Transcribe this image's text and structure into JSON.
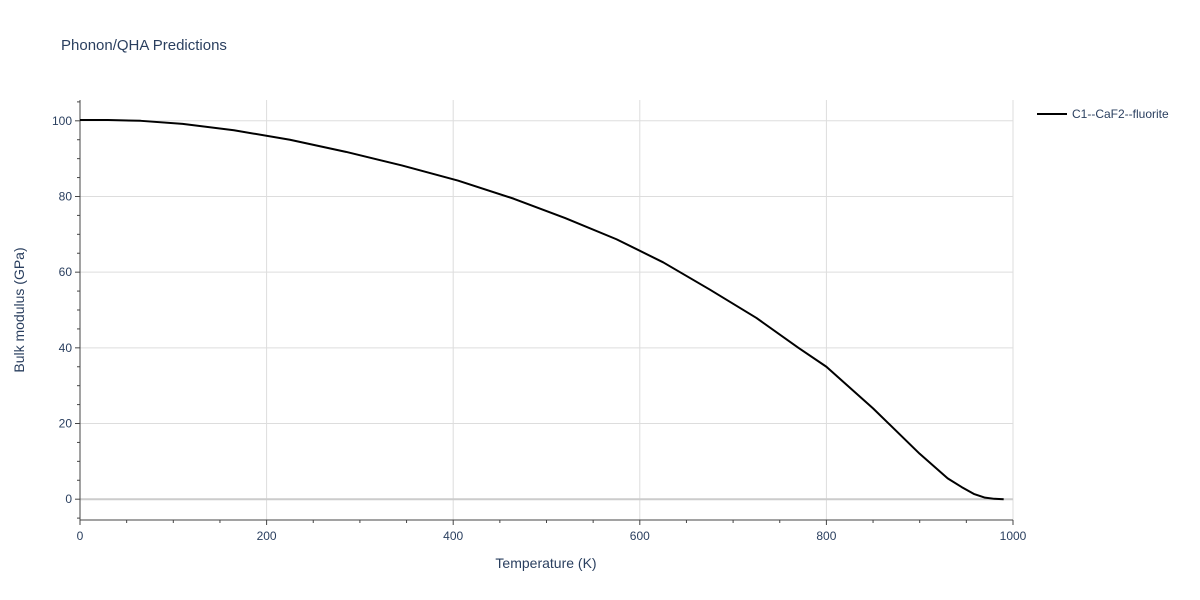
{
  "chart_data": {
    "type": "line",
    "title": "Phonon/QHA Predictions",
    "xlabel": "Temperature (K)",
    "ylabel": "Bulk modulus (GPa)",
    "xlim": [
      0,
      1000
    ],
    "ylim": [
      -5.5,
      105.5
    ],
    "x_ticks": [
      0,
      200,
      400,
      600,
      800,
      1000
    ],
    "x_tick_labels": [
      "0",
      "200",
      "400",
      "600",
      "800",
      "1000"
    ],
    "y_ticks": [
      0,
      20,
      40,
      60,
      80,
      100
    ],
    "y_tick_labels": [
      "0",
      "20",
      "40",
      "60",
      "80",
      "100"
    ],
    "grid": true,
    "legend_position": "top-right",
    "series": [
      {
        "name": "C1--CaF2--fluorite",
        "color": "#000000",
        "x": [
          0,
          30,
          65,
          110,
          165,
          225,
          285,
          345,
          405,
          465,
          520,
          575,
          625,
          675,
          725,
          770,
          800,
          850,
          900,
          930,
          945,
          958,
          970,
          980,
          990
        ],
        "y": [
          100.2,
          100.2,
          100.0,
          99.2,
          97.5,
          95.0,
          91.8,
          88.2,
          84.2,
          79.4,
          74.3,
          68.7,
          62.6,
          55.4,
          47.9,
          40.0,
          35.0,
          24.0,
          12.0,
          5.5,
          3.2,
          1.4,
          0.4,
          0.1,
          0.0
        ]
      }
    ]
  }
}
